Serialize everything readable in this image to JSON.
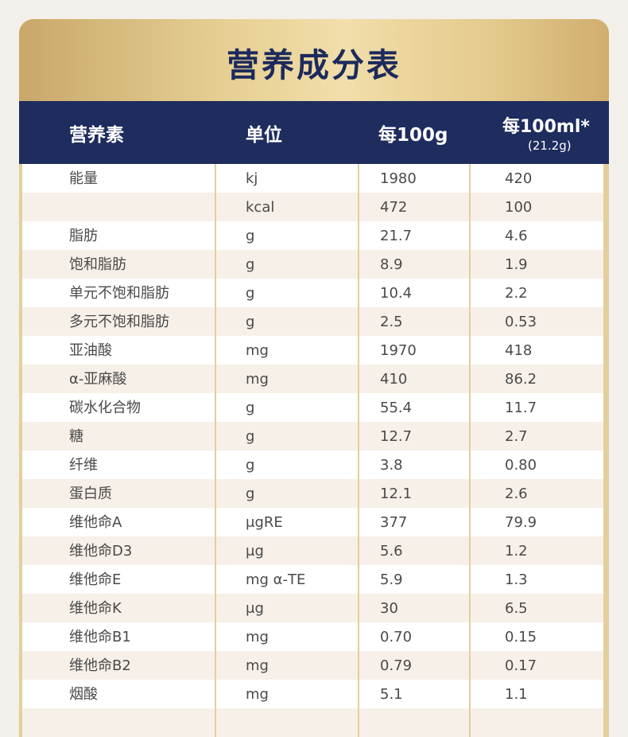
{
  "title": "营养成分表",
  "headers": {
    "nutrient": "营养素",
    "unit": "单位",
    "per100g": "每100g",
    "per100ml": "每100ml*",
    "per100ml_note": "(21.2g)"
  },
  "rows": [
    {
      "name": "能量",
      "unit": "kj",
      "per100g": "1980",
      "per100ml": "420"
    },
    {
      "name": "",
      "unit": "kcal",
      "per100g": "472",
      "per100ml": "100"
    },
    {
      "name": "脂肪",
      "unit": "g",
      "per100g": "21.7",
      "per100ml": "4.6"
    },
    {
      "name": "饱和脂肪",
      "unit": "g",
      "per100g": "8.9",
      "per100ml": "1.9"
    },
    {
      "name": "单元不饱和脂肪",
      "unit": "g",
      "per100g": "10.4",
      "per100ml": "2.2"
    },
    {
      "name": "多元不饱和脂肪",
      "unit": "g",
      "per100g": "2.5",
      "per100ml": "0.53"
    },
    {
      "name": "亚油酸",
      "unit": "mg",
      "per100g": "1970",
      "per100ml": "418"
    },
    {
      "name": "α-亚麻酸",
      "unit": "mg",
      "per100g": "410",
      "per100ml": "86.2"
    },
    {
      "name": "碳水化合物",
      "unit": "g",
      "per100g": "55.4",
      "per100ml": "11.7"
    },
    {
      "name": "糖",
      "unit": "g",
      "per100g": "12.7",
      "per100ml": "2.7"
    },
    {
      "name": "纤维",
      "unit": "g",
      "per100g": "3.8",
      "per100ml": "0.80"
    },
    {
      "name": "蛋白质",
      "unit": "g",
      "per100g": "12.1",
      "per100ml": "2.6"
    },
    {
      "name": "维他命A",
      "unit": "μgRE",
      "per100g": "377",
      "per100ml": "79.9"
    },
    {
      "name": "维他命D3",
      "unit": "μg",
      "per100g": "5.6",
      "per100ml": "1.2"
    },
    {
      "name": "维他命E",
      "unit": "mg α-TE",
      "per100g": "5.9",
      "per100ml": "1.3"
    },
    {
      "name": "维他命K",
      "unit": "μg",
      "per100g": "30",
      "per100ml": "6.5"
    },
    {
      "name": "维他命B1",
      "unit": "mg",
      "per100g": "0.70",
      "per100ml": "0.15"
    },
    {
      "name": "维他命B2",
      "unit": "mg",
      "per100g": "0.79",
      "per100ml": "0.17"
    },
    {
      "name": "烟酸",
      "unit": "mg",
      "per100g": "5.1",
      "per100ml": "1.1"
    },
    {
      "name": "",
      "unit": "",
      "per100g": "",
      "per100ml": ""
    }
  ]
}
